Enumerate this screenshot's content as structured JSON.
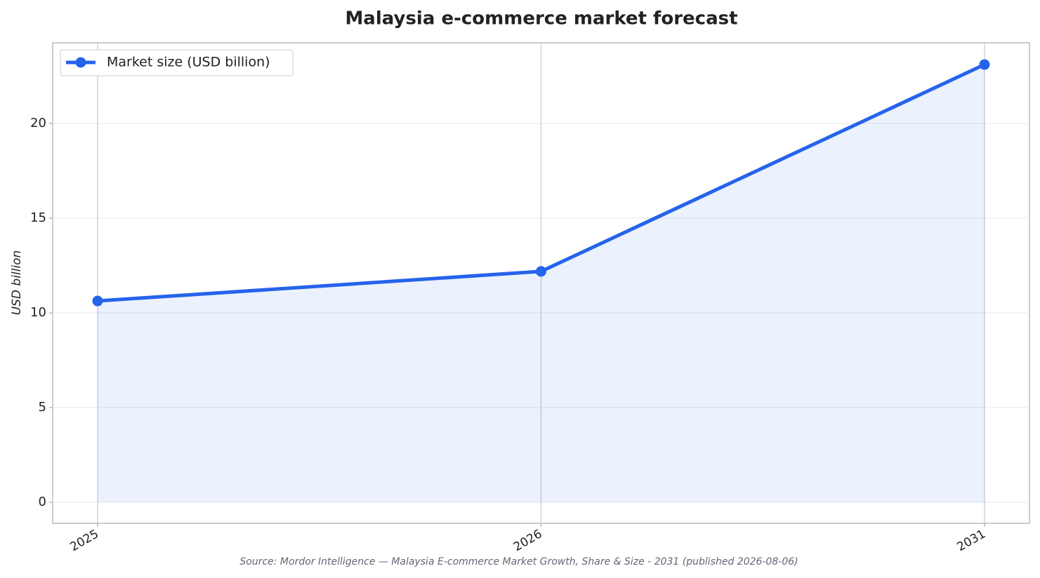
{
  "chart_data": {
    "type": "line",
    "title": "Malaysia e-commerce market forecast",
    "y_label": "USD billion",
    "source": "Source: Mordor Intelligence — Malaysia E-commerce Market Growth, Share & Size - 2031 (published 2026-08-06)",
    "categories": [
      "2025",
      "2026",
      "2031"
    ],
    "series": [
      {
        "name": "Market size (USD billion)",
        "color": "#2563eb",
        "values": [
          10.63,
          12.19,
          23.11
        ]
      }
    ],
    "ylim": [
      -1.11,
      24.26
    ],
    "yticks": [
      0,
      5,
      10,
      15,
      20
    ],
    "grid": true,
    "area_fill": true,
    "legend": "upper left"
  }
}
